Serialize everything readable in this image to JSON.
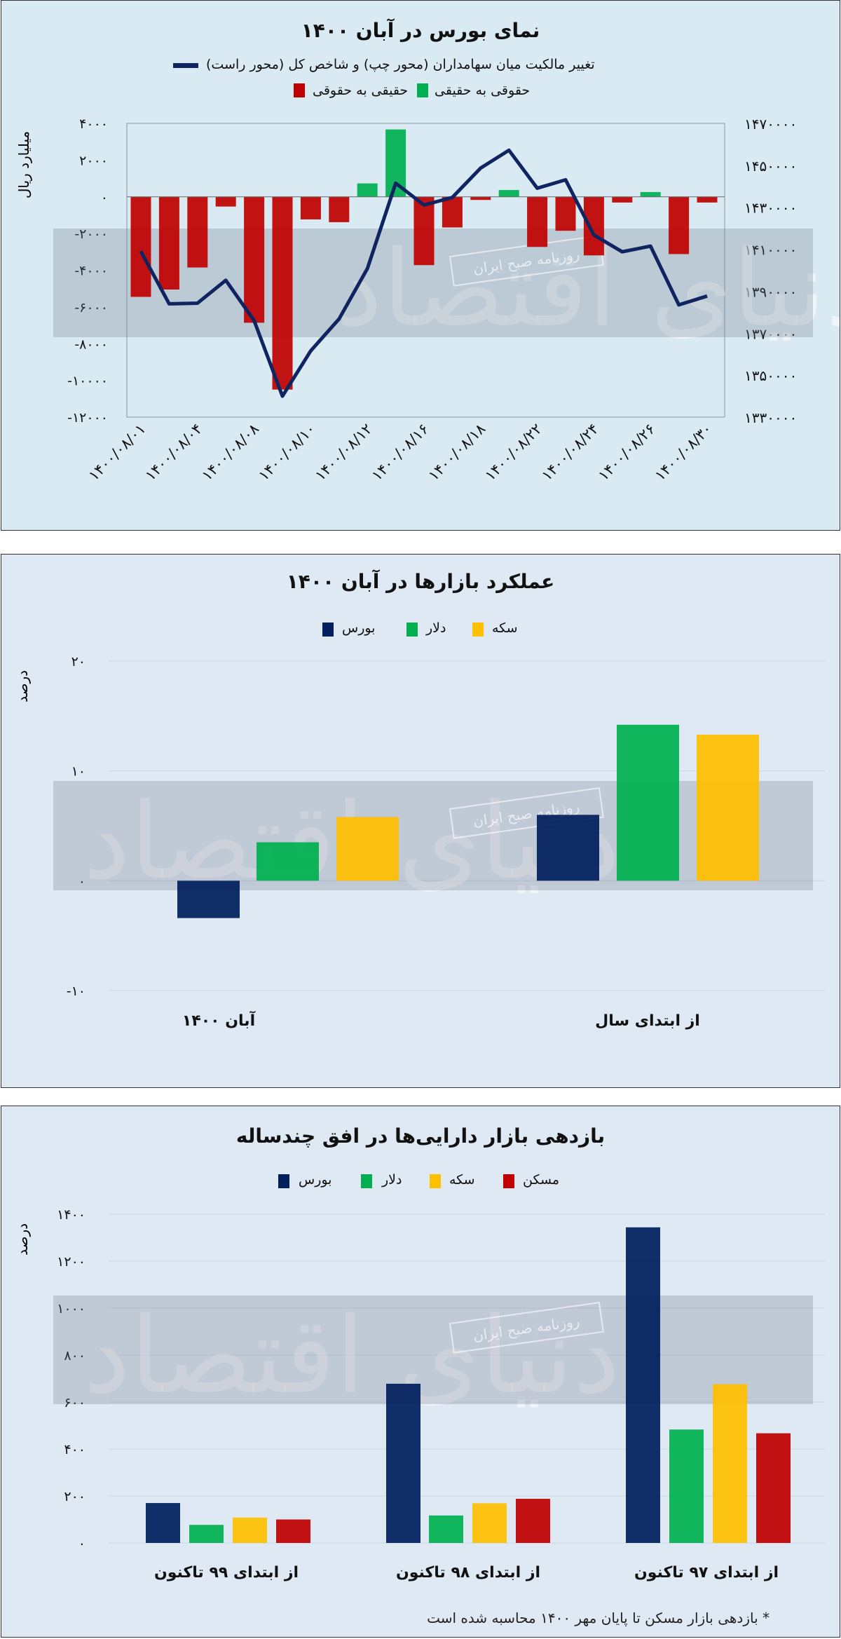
{
  "colors": {
    "red": "#c00000",
    "green": "#00b050",
    "navy": "#0f2460",
    "bourse": "#001f5c",
    "yellow": "#ffc000",
    "grid": "#c9d6e3"
  },
  "watermark": {
    "logo": "دنیای اقتصاد",
    "stamp": "روزنامه صبح ایران"
  },
  "chart_data": [
    {
      "type": "bar+line",
      "title": "نمای بورس در آبان ۱۴۰۰",
      "line_legend": "تغییر مالکیت میان سهامداران (محور چپ) و شاخص کل (محور راست)",
      "bar_legend": [
        {
          "name": "حقیقی به حقوقی",
          "color": "#c00000"
        },
        {
          "name": "حقوقی به حقیقی",
          "color": "#00b050"
        }
      ],
      "ylabel": "میلیارد ریال",
      "ylim": [
        -12000,
        4000
      ],
      "yticks": [
        "۴۰۰۰",
        "۲۰۰۰",
        "۰",
        "-۲۰۰۰",
        "-۴۰۰۰",
        "-۶۰۰۰",
        "-۸۰۰۰",
        "-۱۰۰۰۰",
        "-۱۲۰۰۰"
      ],
      "y2lim": [
        1330000,
        1470000
      ],
      "y2ticks": [
        "۱۴۷۰۰۰۰",
        "۱۴۵۰۰۰۰",
        "۱۴۳۰۰۰۰",
        "۱۴۱۰۰۰۰",
        "۱۳۹۰۰۰۰",
        "۱۳۷۰۰۰۰",
        "۱۳۵۰۰۰۰",
        "۱۳۳۰۰۰۰"
      ],
      "xticks": [
        "۱۴۰۰/۰۸/۰۱",
        "۱۴۰۰/۰۸/۰۴",
        "۱۴۰۰/۰۸/۰۸",
        "۱۴۰۰/۰۸/۱۰",
        "۱۴۰۰/۰۸/۱۲",
        "۱۴۰۰/۰۸/۱۶",
        "۱۴۰۰/۰۸/۱۸",
        "۱۴۰۰/۰۸/۲۲",
        "۱۴۰۰/۰۸/۲۴",
        "۱۴۰۰/۰۸/۲۶",
        "۱۴۰۰/۰۸/۳۰"
      ],
      "bars": [
        -5450,
        -5050,
        -3850,
        -530,
        -6860,
        -10500,
        -1230,
        -1380,
        730,
        3670,
        -3720,
        -1670,
        -170,
        370,
        -2730,
        -1850,
        -3190,
        -310,
        260,
        -3120,
        -310
      ],
      "index": [
        1409000,
        1384000,
        1384300,
        1395200,
        1376000,
        1340000,
        1361600,
        1376800,
        1400800,
        1441500,
        1431100,
        1434700,
        1448700,
        1457200,
        1439100,
        1443100,
        1416800,
        1408800,
        1411500,
        1383500,
        1387700
      ]
    },
    {
      "type": "bar",
      "title": "عملکرد بازارها در آبان ۱۴۰۰",
      "ylabel": "درصد",
      "ylim": [
        -10,
        20
      ],
      "yticks": [
        "۲۰",
        "۱۰",
        "۰",
        "-۱۰"
      ],
      "categories": [
        "آبان ۱۴۰۰",
        "از ابتدای سال"
      ],
      "series": [
        {
          "name": "بورس",
          "color": "#001f5c",
          "values": [
            -3.4,
            6.0
          ]
        },
        {
          "name": "دلار",
          "color": "#00b050",
          "values": [
            3.5,
            14.2
          ]
        },
        {
          "name": "سکه",
          "color": "#ffc000",
          "values": [
            5.8,
            13.3
          ]
        }
      ]
    },
    {
      "type": "bar",
      "title": "بازدهی بازار دارایی‌ها در افق چندساله",
      "ylabel": "درصد",
      "ylim": [
        0,
        1400
      ],
      "yticks": [
        "۱۴۰۰",
        "۱۲۰۰",
        "۱۰۰۰",
        "۸۰۰",
        "۶۰۰",
        "۴۰۰",
        "۲۰۰",
        "۰"
      ],
      "categories": [
        "از ابتدای ۹۹ تاکنون",
        "از ابتدای ۹۸ تاکنون",
        "از ابتدای ۹۷ تاکنون"
      ],
      "series": [
        {
          "name": "بورس",
          "color": "#001f5c",
          "values": [
            170,
            678,
            1344
          ]
        },
        {
          "name": "دلار",
          "color": "#00b050",
          "values": [
            77,
            117,
            483
          ]
        },
        {
          "name": "سکه",
          "color": "#ffc000",
          "values": [
            108,
            169,
            676
          ]
        },
        {
          "name": "مسکن",
          "color": "#c00000",
          "values": [
            100,
            188,
            467
          ]
        }
      ],
      "footnote": "* بازدهی بازار مسکن تا پایان مهر ۱۴۰۰ محاسبه شده است"
    }
  ]
}
